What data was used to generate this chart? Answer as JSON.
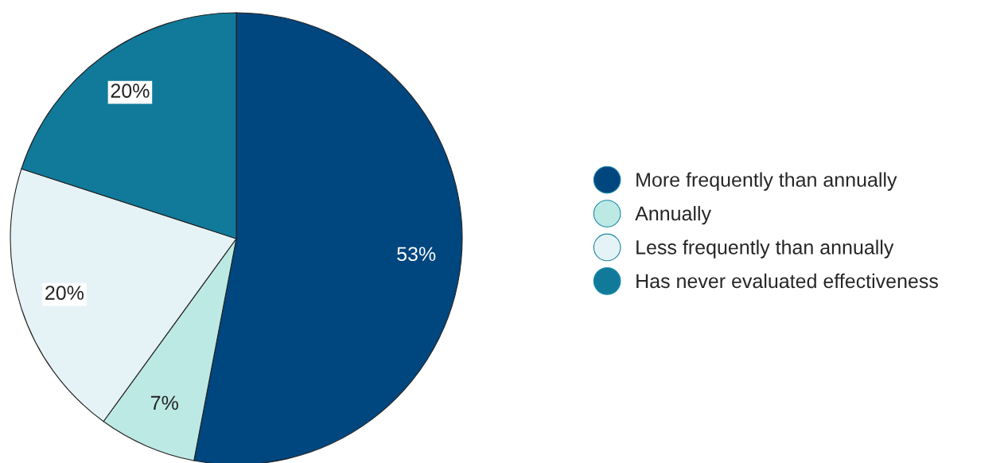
{
  "chart_data": {
    "type": "pie",
    "categories": [
      "More frequently than annually",
      "Annually",
      "Less frequently than annually",
      "Has never evaluated effectiveness"
    ],
    "values": [
      53,
      7,
      20,
      20
    ],
    "colors": [
      "#00467f",
      "#bde9e4",
      "#e6f3f6",
      "#117a9a"
    ],
    "value_labels": [
      "53%",
      "7%",
      "20%",
      "20%"
    ],
    "legend": "right"
  }
}
